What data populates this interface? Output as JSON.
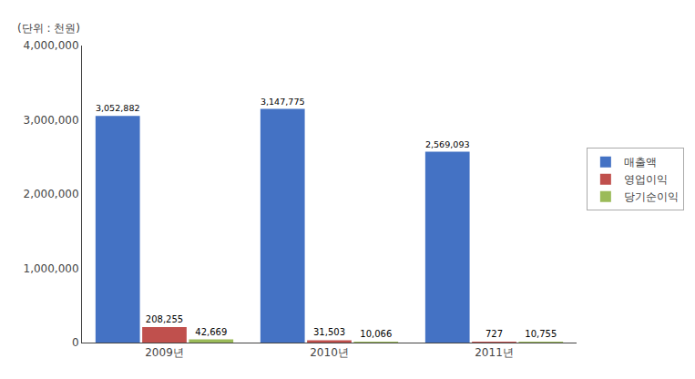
{
  "chart_data": {
    "type": "bar",
    "categories": [
      "2009년",
      "2010년",
      "2011년"
    ],
    "series": [
      {
        "name": "매출액",
        "color": "#4472C4",
        "values": [
          3052882,
          3147775,
          2569093
        ],
        "value_labels": [
          "3,052,882",
          "3,147,775",
          "2,569,093"
        ]
      },
      {
        "name": "영업이익",
        "color": "#C0504D",
        "values": [
          208255,
          31503,
          727
        ],
        "value_labels": [
          "208,255",
          "31,503",
          "727"
        ]
      },
      {
        "name": "당기순이익",
        "color": "#9BBB59",
        "values": [
          42669,
          10066,
          10755
        ],
        "value_labels": [
          "42,669",
          "10,066",
          "10,755"
        ]
      }
    ],
    "annotations": [
      "(단위 : 천원)"
    ],
    "ylim": [
      0,
      4000000
    ],
    "yticks": [
      0,
      {
        "value": 1000000,
        "label": "1,000,000"
      },
      {
        "value": 2000000,
        "label": "2,000,000"
      },
      {
        "value": 3000000,
        "label": "3,000,000"
      },
      {
        "value": 4000000,
        "label": "4,000,000"
      }
    ],
    "grid": false,
    "legend": "right",
    "data_labels": true
  }
}
